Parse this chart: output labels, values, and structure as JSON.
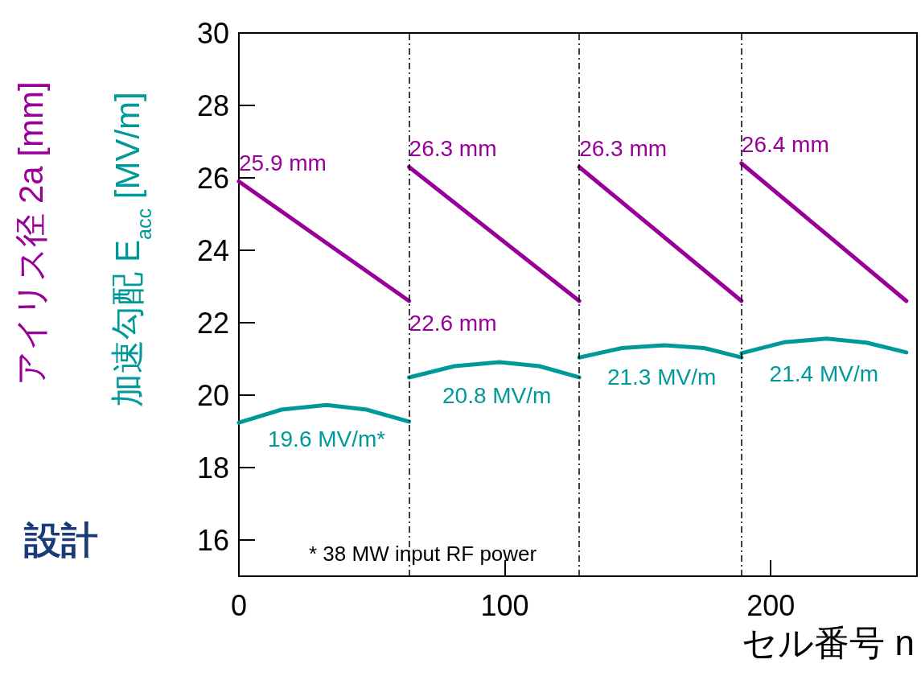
{
  "chart_data": {
    "type": "line",
    "xlabel": "セル番号 n",
    "ylabel": "アイリス径 2a [mm]",
    "annotations": [
      "加速勾配 E$_{acc}$ [MV/m]",
      "* 38 MW input RF power",
      "設計",
      {
        "text": "19.6 MV/m*",
        "x": 33,
        "y": 19.6
      },
      {
        "text": "20.8 MV/m",
        "x": 97,
        "y": 20.8
      },
      {
        "text": "21.3 MV/m",
        "x": 159,
        "y": 21.3
      },
      {
        "text": "21.4 MV/m",
        "x": 220,
        "y": 21.4
      }
    ],
    "series": [
      {
        "color": "#990099",
        "x": [
          0,
          64
        ],
        "values": [
          25.9,
          22.6
        ],
        "value_labels": [
          "25.9 mm",
          "22.6 mm"
        ]
      },
      {
        "color": "#990099",
        "x": [
          64,
          128
        ],
        "values": [
          26.3,
          22.6
        ],
        "value_labels": [
          "26.3 mm",
          null
        ]
      },
      {
        "color": "#990099",
        "x": [
          128,
          189
        ],
        "values": [
          26.3,
          22.6
        ],
        "value_labels": [
          "26.3 mm",
          null
        ]
      },
      {
        "color": "#990099",
        "x": [
          189,
          251
        ],
        "values": [
          26.4,
          22.6
        ],
        "value_labels": [
          "26.4 mm",
          null
        ]
      },
      {
        "color": "#009999",
        "x": [
          0,
          16,
          33,
          48,
          64
        ],
        "values": [
          19.24,
          19.6,
          19.73,
          19.6,
          19.27
        ]
      },
      {
        "color": "#009999",
        "x": [
          64,
          81,
          98,
          113,
          128
        ],
        "values": [
          20.49,
          20.8,
          20.91,
          20.8,
          20.49
        ]
      },
      {
        "color": "#009999",
        "x": [
          128,
          144,
          160,
          175,
          189
        ],
        "values": [
          21.04,
          21.3,
          21.38,
          21.3,
          21.04
        ]
      },
      {
        "color": "#009999",
        "x": [
          189,
          205,
          221,
          236,
          251
        ],
        "values": [
          21.16,
          21.46,
          21.56,
          21.45,
          21.18
        ]
      }
    ],
    "xlim": [
      0,
      255
    ],
    "xticks": [
      0,
      100,
      200
    ],
    "ylim": [
      15,
      30
    ],
    "yticks": [
      16,
      18,
      20,
      22,
      24,
      26,
      28,
      30
    ],
    "ref_lines": [
      {
        "axis": "x",
        "value": 64,
        "line_style": "dashdot"
      },
      {
        "axis": "x",
        "value": 128,
        "line_style": "dashdot"
      },
      {
        "axis": "x",
        "value": 189,
        "line_style": "dashdot"
      }
    ],
    "grid": false,
    "line_style": "solid"
  }
}
